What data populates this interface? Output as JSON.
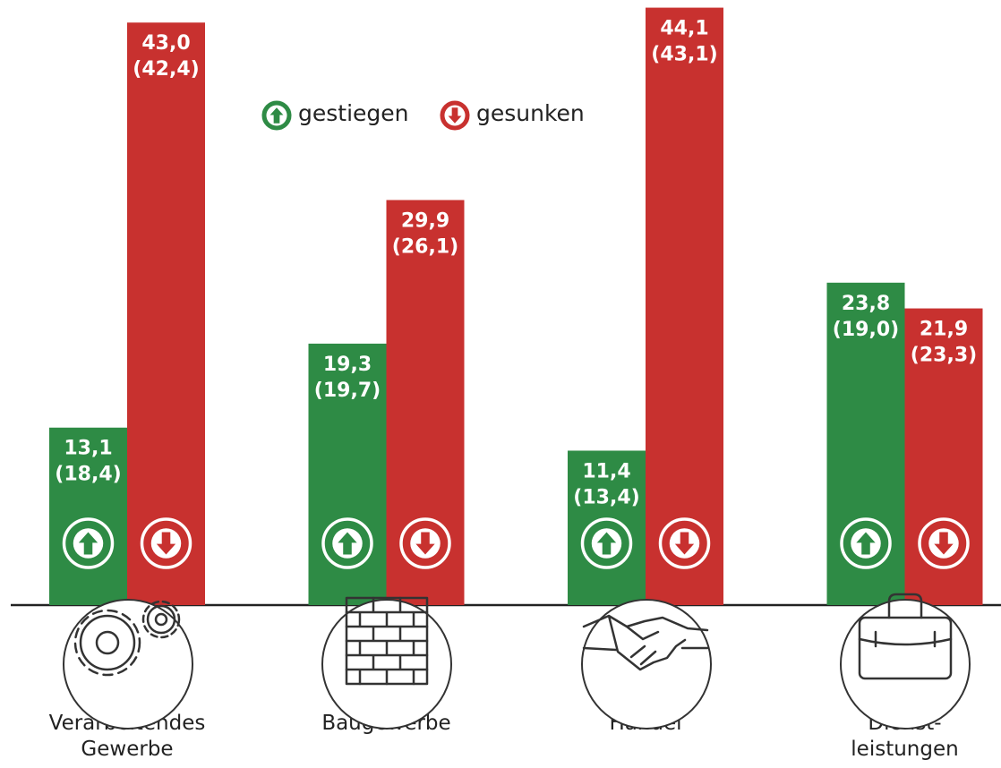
{
  "chart_data": {
    "type": "bar",
    "categories": [
      "Verarbeitendes\nGewerbe",
      "Baugewerbe",
      "Handel",
      "Dienst-\nleistungen"
    ],
    "series": [
      {
        "name": "gestiegen",
        "color": "#2e8b45",
        "values": [
          13.1,
          19.3,
          11.4,
          23.8
        ],
        "value_labels": [
          "13,1",
          "19,3",
          "11,4",
          "23,8"
        ],
        "previous_labels": [
          "(18,4)",
          "(19,7)",
          "(13,4)",
          "(19,0)"
        ]
      },
      {
        "name": "gesunken",
        "color": "#c8312f",
        "values": [
          43.0,
          29.9,
          44.1,
          21.9
        ],
        "value_labels": [
          "43,0",
          "29,9",
          "44,1",
          "21,9"
        ],
        "previous_labels": [
          "(42,4)",
          "(26,1)",
          "(43,1)",
          "(23,3)"
        ]
      }
    ],
    "ylim": [
      0,
      44.6
    ]
  }
}
